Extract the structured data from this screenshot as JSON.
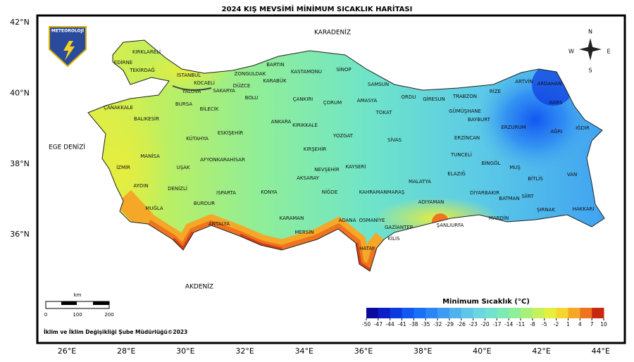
{
  "title": "2024 KIŞ MEVSİMİ MİNİMUM SICAKLIK HARİTASI",
  "axes": {
    "lon_labels": [
      "26°E",
      "28°E",
      "30°E",
      "32°E",
      "34°E",
      "36°E",
      "38°E",
      "40°E",
      "42°E",
      "44°E"
    ],
    "lat_labels": [
      "42°N",
      "40°N",
      "38°N",
      "36°N"
    ]
  },
  "seas": [
    "KARADENİZ",
    "EGE DENİZİ",
    "AKDENİZ"
  ],
  "provinces": [
    "KIRKLARELİ",
    "EDİRNE",
    "TEKİRDAĞ",
    "İSTANBUL",
    "KOCAELİ",
    "SAKARYA",
    "DÜZCE",
    "ZONGULDAK",
    "BARTIN",
    "KARABÜK",
    "KASTAMONU",
    "SİNOP",
    "SAMSUN",
    "ORDU",
    "GİRESUN",
    "TRABZON",
    "RİZE",
    "ARTVİN",
    "ARDAHAN",
    "KARS",
    "IĞDIR",
    "AĞRI",
    "ERZURUM",
    "BAYBURT",
    "GÜMÜŞHANE",
    "ERZİNCAN",
    "TUNCELİ",
    "BİNGÖL",
    "MUŞ",
    "VAN",
    "BİTLİS",
    "HAKKARİ",
    "ŞIRNAK",
    "SİİRT",
    "BATMAN",
    "MARDİN",
    "DİYARBAKIR",
    "ELAZIĞ",
    "MALATYA",
    "ADIYAMAN",
    "ŞANLIURFA",
    "GAZİANTEP",
    "KİLİS",
    "OSMANİYE",
    "HATAY",
    "ADANA",
    "KAHRAMANMARAŞ",
    "SİVAS",
    "TOKAT",
    "AMASYA",
    "ÇORUM",
    "ÇANKIRI",
    "BOLU",
    "BİLECİK",
    "BURSA",
    "YALOVA",
    "BALIKESİR",
    "ÇANAKKALE",
    "İZMİR",
    "MANİSA",
    "UŞAK",
    "KÜTAHYA",
    "ESKİŞEHİR",
    "AFYONKARAHİSAR",
    "DENİZLİ",
    "AYDIN",
    "MUĞLA",
    "BURDUR",
    "ISPARTA",
    "ANTALYA",
    "KONYA",
    "KARAMAN",
    "MERSİN",
    "NİĞDE",
    "AKSARAY",
    "NEVŞEHİR",
    "KAYSERİ",
    "KIRŞEHİR",
    "KIRIKKALE",
    "ANKARA",
    "YOZGAT"
  ],
  "legend": {
    "title": "Minimum Sıcaklık (°C)",
    "ticks": [
      -50,
      -47,
      -44,
      -41,
      -38,
      -35,
      -32,
      -29,
      -26,
      -23,
      -20,
      -17,
      -14,
      -11,
      -8,
      -5,
      -2,
      1,
      4,
      7,
      10
    ],
    "colors": [
      "#0a0a9c",
      "#0b1fc4",
      "#0d3ae0",
      "#1257f0",
      "#1b6ff5",
      "#2b86f5",
      "#3c9cf2",
      "#4fb2ee",
      "#5fc6e8",
      "#6bd6df",
      "#72e2cf",
      "#7de9b6",
      "#8fee98",
      "#a7f07a",
      "#c6f05c",
      "#e6ee3e",
      "#f6d530",
      "#f5a828",
      "#ee7420",
      "#c8280f"
    ]
  },
  "scale_bar": {
    "unit": "km",
    "labels": [
      "0",
      "100",
      "200"
    ]
  },
  "logo": "METEOROLOJİ",
  "compass": [
    "N",
    "E",
    "S",
    "W"
  ],
  "credit": "İklim ve İklim Değişikliği Şube Müdürlüğü©2023"
}
